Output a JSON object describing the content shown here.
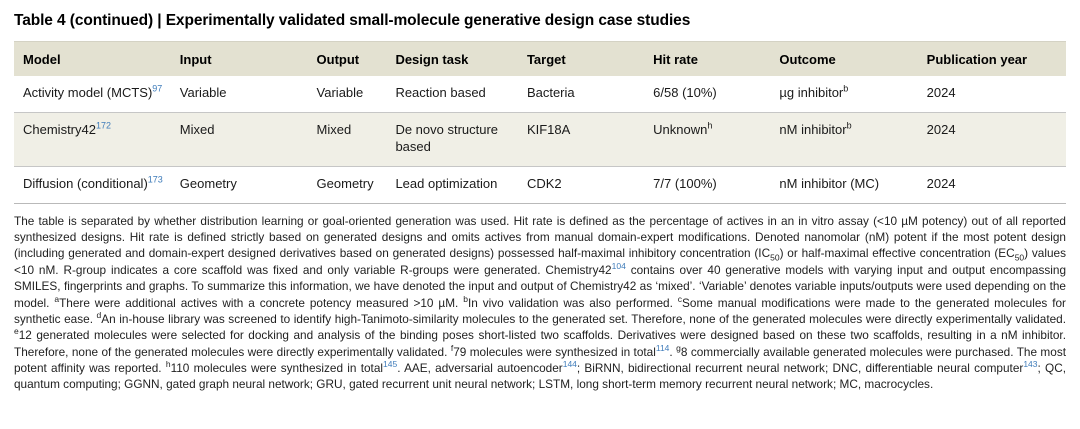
{
  "title": "Table 4 (continued) | Experimentally validated small-molecule generative design case studies",
  "colors": {
    "header_bg": "#e3e1d1",
    "shaded_row_bg": "#f0efe6",
    "citation_blue": "#3f7cba",
    "row_border": "#c6c6c6"
  },
  "table": {
    "columns": [
      "Model",
      "Input",
      "Output",
      "Design task",
      "Target",
      "Hit rate",
      "Outcome",
      "Publication year"
    ],
    "rows": [
      {
        "shaded": false,
        "cells": [
          [
            {
              "t": "Activity model (MCTS)"
            },
            {
              "sup": "97",
              "link": true
            }
          ],
          "Variable",
          "Variable",
          "Reaction based",
          "Bacteria",
          "6/58 (10%)",
          [
            {
              "t": "µg inhibitor"
            },
            {
              "sup": "b"
            }
          ],
          "2024"
        ]
      },
      {
        "shaded": true,
        "cells": [
          [
            {
              "t": "Chemistry42"
            },
            {
              "sup": "172",
              "link": true
            }
          ],
          "Mixed",
          "Mixed",
          "De novo structure based",
          "KIF18A",
          [
            {
              "t": "Unknown"
            },
            {
              "sup": "h"
            }
          ],
          [
            {
              "t": "nM inhibitor"
            },
            {
              "sup": "b"
            }
          ],
          "2024"
        ]
      },
      {
        "shaded": false,
        "cells": [
          [
            {
              "t": "Diffusion (conditional)"
            },
            {
              "sup": "173",
              "link": true
            }
          ],
          "Geometry",
          "Geometry",
          "Lead optimization",
          "CDK2",
          "7/7 (100%)",
          "nM inhibitor (MC)",
          "2024"
        ]
      }
    ]
  },
  "footnote": [
    {
      "t": "The table is separated by whether distribution learning or goal-oriented generation was used. Hit rate is defined as the percentage of actives in an in vitro assay (<10 µM potency) out of all reported synthesized designs. Hit rate is defined strictly based on generated designs and omits actives from manual domain-expert modifications. Denoted nanomolar (nM) potent if the most potent design (including generated and domain-expert designed derivatives based on generated designs) possessed half-maximal inhibitory concentration (IC"
    },
    {
      "sub": "50"
    },
    {
      "t": ") or half-maximal effective concentration (EC"
    },
    {
      "sub": "50"
    },
    {
      "t": ") values <10 nM. R-group indicates a core scaffold was fixed and only variable R-groups were generated. Chemistry42"
    },
    {
      "sup": "104",
      "link": true
    },
    {
      "t": " contains over 40 generative models with varying input and output encompassing SMILES, fingerprints and graphs. To summarize this information, we have denoted the input and output of Chemistry42 as ‘mixed’. ‘Variable’ denotes variable inputs/outputs were used depending on the model. "
    },
    {
      "sup": "a"
    },
    {
      "t": "There were additional actives with a concrete potency measured >10 µM. "
    },
    {
      "sup": "b"
    },
    {
      "t": "In vivo validation was also performed. "
    },
    {
      "sup": "c"
    },
    {
      "t": "Some manual modifications were made to the generated molecules for synthetic ease. "
    },
    {
      "sup": "d"
    },
    {
      "t": "An in-house library was screened to identify high-Tanimoto-similarity molecules to the generated set. Therefore, none of the generated molecules were directly experimentally validated. "
    },
    {
      "sup": "e"
    },
    {
      "t": "12 generated molecules were selected for docking and analysis of the binding poses short-listed two scaffolds. Derivatives were designed based on these two scaffolds, resulting in a nM inhibitor. Therefore, none of the generated molecules were directly experimentally validated. "
    },
    {
      "sup": "f"
    },
    {
      "t": "79 molecules were synthesized in total"
    },
    {
      "sup": "114",
      "link": true
    },
    {
      "t": ". "
    },
    {
      "sup": "g"
    },
    {
      "t": "8 commercially available generated molecules were purchased. The most potent affinity was reported. "
    },
    {
      "sup": "h"
    },
    {
      "t": "110 molecules were synthesized in total"
    },
    {
      "sup": "145",
      "link": true
    },
    {
      "t": ". AAE, adversarial autoencoder"
    },
    {
      "sup": "144",
      "link": true
    },
    {
      "t": "; BiRNN, bidirectional recurrent neural network; DNC, differentiable neural computer"
    },
    {
      "sup": "143",
      "link": true
    },
    {
      "t": "; QC, quantum computing; GGNN, gated graph neural network; GRU, gated recurrent unit neural network; LSTM, long short-term memory recurrent neural network; MC, macrocycles."
    }
  ]
}
